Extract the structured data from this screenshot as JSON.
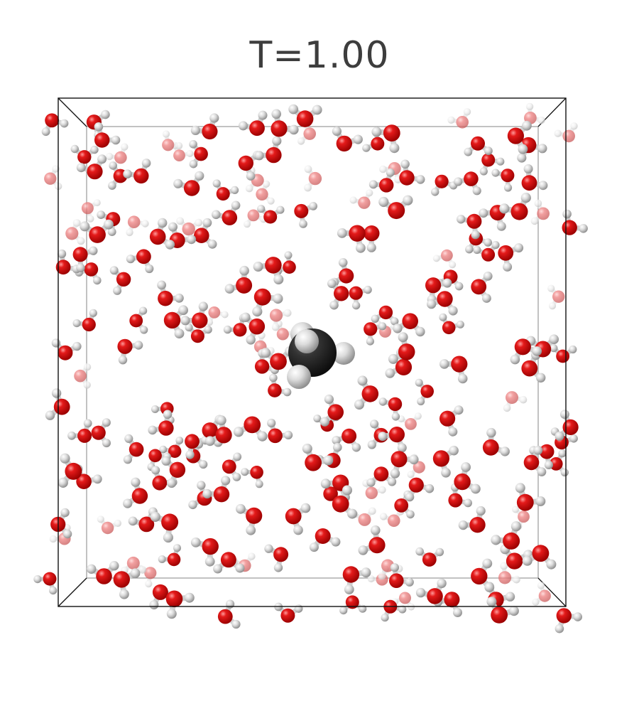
{
  "title": "T=1.00",
  "scene": {
    "solute": "methane",
    "solvent": "water",
    "colors": {
      "oxygen": "#d40000",
      "hydrogen": "#d8d8d8",
      "carbon": "#2e2e2e",
      "box_edge": "#111111",
      "box_far_edge": "#9a9a9a"
    }
  }
}
